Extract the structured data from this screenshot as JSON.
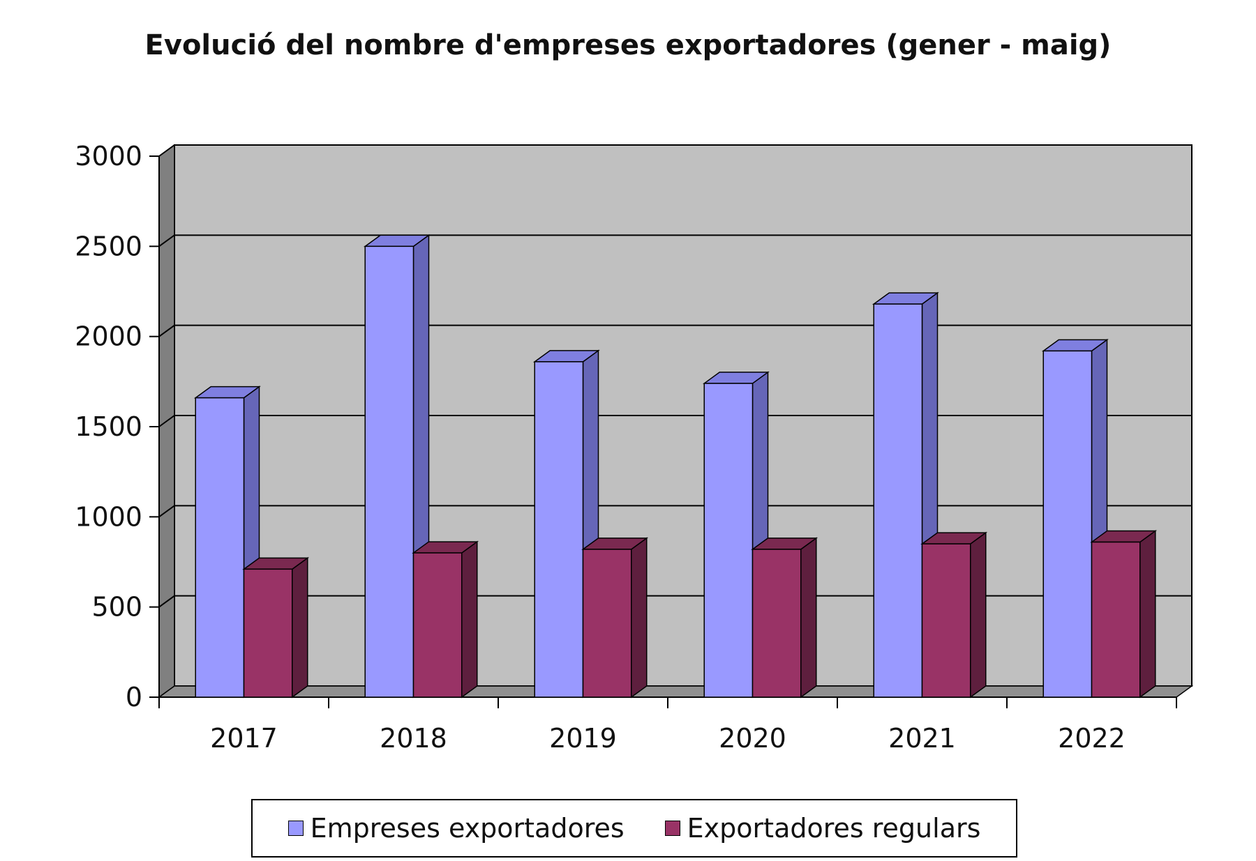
{
  "chart_data": {
    "type": "bar",
    "title": "Evolució del nombre d'empreses exportadores (gener - maig)",
    "xlabel": "",
    "ylabel": "",
    "categories": [
      "2017",
      "2018",
      "2019",
      "2020",
      "2021",
      "2022"
    ],
    "series": [
      {
        "name": "Empreses exportadores",
        "values": [
          1660,
          2500,
          1860,
          1740,
          2180,
          1920
        ]
      },
      {
        "name": "Exportadores regulars",
        "values": [
          710,
          800,
          820,
          820,
          850,
          860
        ]
      }
    ],
    "ylim": [
      0,
      3000
    ],
    "yticks": [
      "0",
      "500",
      "1000",
      "1500",
      "2000",
      "2500",
      "3000"
    ],
    "grid": true,
    "legend_position": "bottom",
    "colors": {
      "series": [
        {
          "front": "#9999ff",
          "side": "#6666b8",
          "top": "#7f7fe0"
        },
        {
          "front": "#993366",
          "side": "#5e1f3e",
          "top": "#7a2950"
        }
      ],
      "plot_back": "#c0c0c0",
      "plot_wall": "#808080",
      "plot_floor": "#909090",
      "grid": "#000000"
    }
  }
}
